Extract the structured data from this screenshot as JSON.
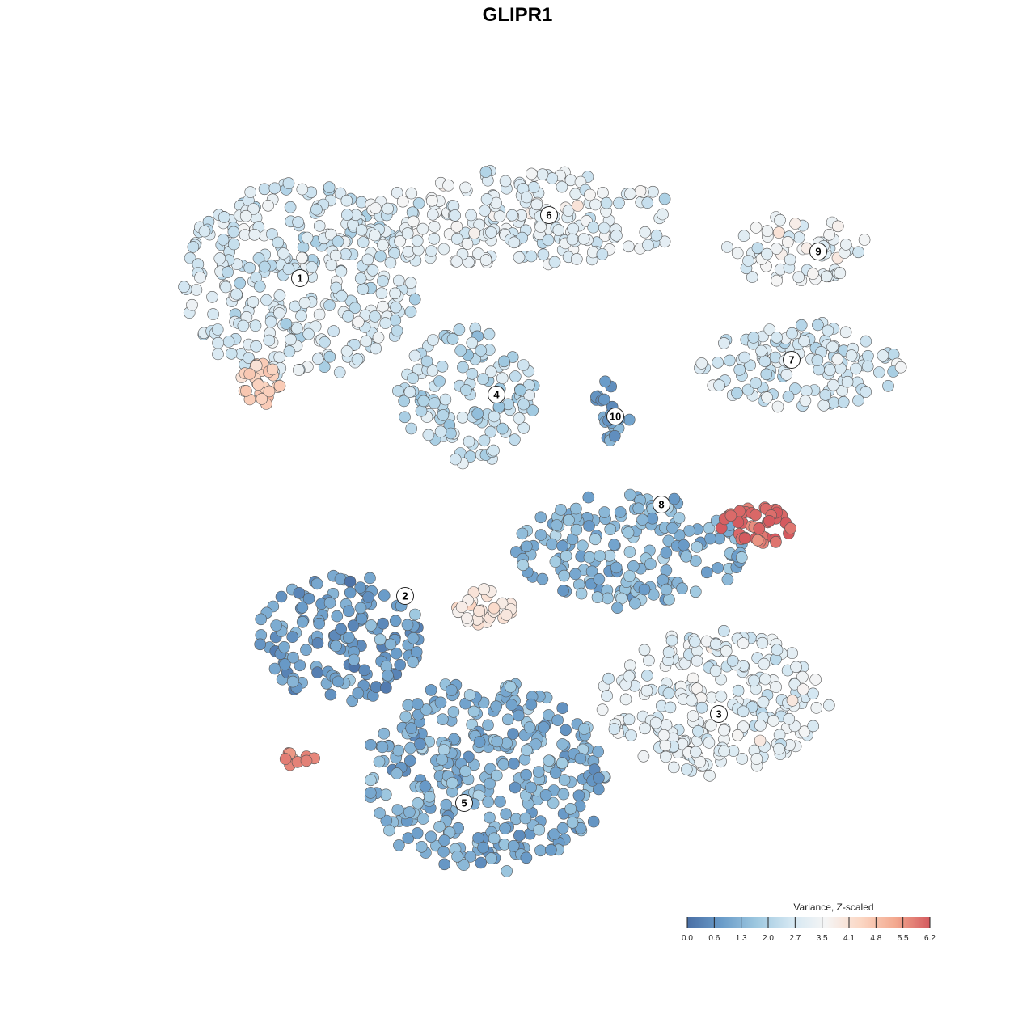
{
  "chart_data": {
    "type": "scatter",
    "title": "GLIPR1",
    "colorbar": {
      "title": "Variance, Z-scaled",
      "ticks": [
        "0.0",
        "0.6",
        "1.3",
        "2.0",
        "2.7",
        "3.5",
        "4.1",
        "4.8",
        "5.5",
        "6.2"
      ],
      "range": [
        0.0,
        6.2
      ],
      "colors": [
        "#4a6fa5",
        "#6a9cc9",
        "#9ec8e0",
        "#d4e7f2",
        "#f5f5f5",
        "#fbd7c4",
        "#f3a98f",
        "#d45a5f"
      ]
    },
    "clusters": [
      {
        "label": "1",
        "level": 2.7
      },
      {
        "label": "2",
        "level": 1.0
      },
      {
        "label": "3",
        "level": 3.0
      },
      {
        "label": "4",
        "level": 2.3
      },
      {
        "label": "5",
        "level": 1.3
      },
      {
        "label": "6",
        "level": 3.0
      },
      {
        "label": "7",
        "level": 2.6
      },
      {
        "label": "8",
        "level": 1.4
      },
      {
        "label": "9",
        "level": 3.2
      },
      {
        "label": "10",
        "level": 1.0
      }
    ],
    "hotspots": [
      {
        "near_cluster": "1",
        "level": 4.6
      },
      {
        "near_cluster": "8",
        "level": 6.0
      },
      {
        "near_cluster": "2",
        "level": 5.6
      },
      {
        "near_cluster": "5",
        "level": 4.0
      }
    ],
    "grid": false,
    "legend_position": "bottom-right"
  }
}
